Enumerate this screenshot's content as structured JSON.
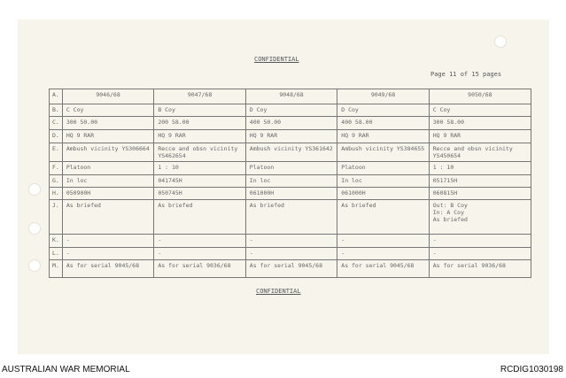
{
  "header": {
    "confidential": "CONFIDENTIAL",
    "page": "Page 11 of 15 pages"
  },
  "table": {
    "rows": [
      {
        "label": "A.",
        "cells": [
          "9046/68",
          "9047/68",
          "9048/68",
          "9049/68",
          "9050/68"
        ]
      },
      {
        "label": "B.",
        "cells": [
          "C Coy",
          "B Coy",
          "D Coy",
          "D Coy",
          "C Coy"
        ]
      },
      {
        "label": "C.",
        "cells": [
          "300        50.00",
          "200        58.00",
          "400        50.00",
          "400        58.00",
          "300        58.00"
        ]
      },
      {
        "label": "D.",
        "cells": [
          "HQ 9 RAR",
          "HQ 9 RAR",
          "HQ 9 RAR",
          "HQ 9 RAR",
          "HQ 9 RAR"
        ]
      },
      {
        "label": "E.",
        "cells": [
          "Ambush vicinity YS306664",
          "Recce and obsn vicinity\nYS462654",
          "Ambush vicinity YS361642",
          "Ambush vicinity YS384655",
          "Recce and obsn vicinity\nYS450654"
        ]
      },
      {
        "label": "F.",
        "cells": [
          "Platoon",
          "1 : 10",
          "Platoon",
          "Platoon",
          "1 : 10"
        ]
      },
      {
        "label": "G.",
        "cells": [
          "In loc",
          "041745H",
          "In loc",
          "In loc",
          "051715H"
        ]
      },
      {
        "label": "H.",
        "cells": [
          "050900H",
          "050745H",
          "061000H",
          "061000H",
          "060815H"
        ]
      },
      {
        "label": "J.",
        "cells": [
          "As briefed",
          "As briefed",
          "As briefed",
          "As briefed",
          "Out:  B Coy\nIn:   A Coy\nAs briefed"
        ]
      },
      {
        "label": "K.",
        "cells": [
          "-",
          "-",
          "-",
          "-",
          "-"
        ]
      },
      {
        "label": "L.",
        "cells": [
          "-",
          "-",
          "-",
          "-",
          "-"
        ]
      },
      {
        "label": "M.",
        "cells": [
          "As for serial 9045/68",
          "As for serial 9036/68",
          "As for serial 9045/68",
          "As for serial 9045/68",
          "As for serial 9036/68"
        ]
      }
    ]
  },
  "footer": {
    "confidential": "CONFIDENTIAL",
    "left": "AUSTRALIAN WAR MEMORIAL",
    "right": "RCDIG1030198"
  }
}
